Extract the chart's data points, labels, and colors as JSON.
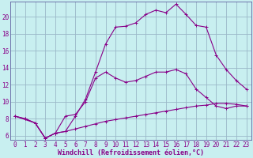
{
  "xlabel": "Windchill (Refroidissement éolien,°C)",
  "bg_color": "#c8eff0",
  "grid_color": "#9ab8c8",
  "line_color": "#880088",
  "spine_color": "#6060a0",
  "xlim": [
    -0.5,
    23.5
  ],
  "ylim": [
    5.5,
    21.8
  ],
  "xticks": [
    0,
    1,
    2,
    3,
    4,
    5,
    6,
    7,
    8,
    9,
    10,
    11,
    12,
    13,
    14,
    15,
    16,
    17,
    18,
    19,
    20,
    21,
    22,
    23
  ],
  "yticks": [
    6,
    8,
    10,
    12,
    14,
    16,
    18,
    20
  ],
  "line1_x": [
    0,
    1,
    2,
    3,
    4,
    5,
    6,
    7,
    8,
    9,
    10,
    11,
    12,
    13,
    14,
    15,
    16,
    17,
    18,
    19,
    20,
    21,
    22,
    23
  ],
  "line1_y": [
    8.3,
    8.0,
    7.5,
    5.7,
    6.3,
    6.5,
    6.8,
    7.1,
    7.4,
    7.7,
    7.9,
    8.1,
    8.3,
    8.5,
    8.7,
    8.9,
    9.1,
    9.3,
    9.5,
    9.6,
    9.8,
    9.8,
    9.7,
    9.5
  ],
  "line2_x": [
    0,
    2,
    3,
    4,
    5,
    6,
    7,
    8,
    9,
    10,
    11,
    12,
    13,
    14,
    15,
    16,
    17,
    18,
    19,
    20,
    21,
    22,
    23
  ],
  "line2_y": [
    8.3,
    7.5,
    5.7,
    6.3,
    8.3,
    8.5,
    10.0,
    12.8,
    13.5,
    12.8,
    12.3,
    12.5,
    13.0,
    13.5,
    13.5,
    13.8,
    13.3,
    11.5,
    10.5,
    9.5,
    9.2,
    9.5,
    9.5
  ],
  "line3_x": [
    0,
    1,
    2,
    3,
    4,
    5,
    6,
    7,
    8,
    9,
    10,
    11,
    12,
    13,
    14,
    15,
    16,
    17,
    18,
    19,
    20,
    21,
    22,
    23
  ],
  "line3_y": [
    8.3,
    8.0,
    7.5,
    5.7,
    6.3,
    6.5,
    8.3,
    10.3,
    13.5,
    16.8,
    18.8,
    18.9,
    19.3,
    20.3,
    20.8,
    20.5,
    21.5,
    20.3,
    19.0,
    18.8,
    15.5,
    13.8,
    12.5,
    11.5
  ],
  "xlabel_fontsize": 6,
  "tick_fontsize": 5.5
}
